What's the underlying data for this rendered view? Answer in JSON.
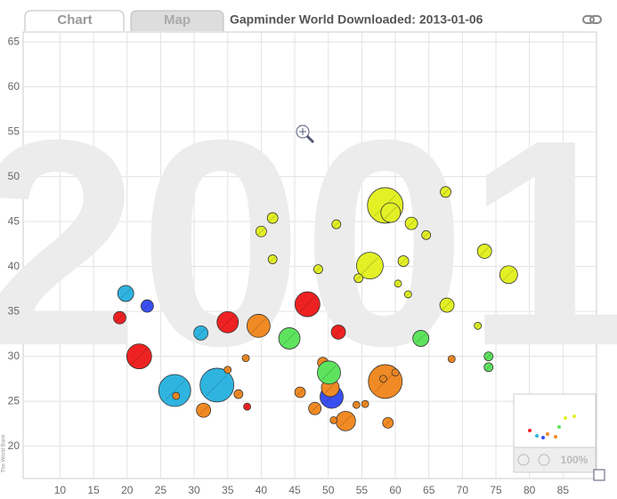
{
  "tabs": [
    "Chart",
    "Map"
  ],
  "chart_data": {
    "type": "bubble",
    "title": "Gapminder World Downloaded: 2013-01-06",
    "watermark": "2001",
    "source": "The World Bank",
    "zoom_label": "100%",
    "xlim": [
      4.5,
      90
    ],
    "ylim": [
      16.4,
      66.1
    ],
    "xticks": [
      10,
      15,
      20,
      25,
      30,
      35,
      40,
      45,
      50,
      55,
      60,
      65,
      70,
      75,
      80,
      85
    ],
    "yticks": [
      20,
      25,
      30,
      35,
      40,
      45,
      50,
      55,
      60,
      65
    ],
    "grid": true,
    "series": [
      {
        "color": "#2fb4e0",
        "x": [
          19.8,
          27.1,
          33.4,
          31.0
        ],
        "values": [
          37.0,
          26.2,
          26.8,
          32.6
        ],
        "sizes": [
          9,
          18,
          19,
          8
        ]
      },
      {
        "color": "#3a4ff0",
        "x": [
          23.0,
          50.5
        ],
        "values": [
          35.6,
          25.5
        ],
        "sizes": [
          7,
          13
        ]
      },
      {
        "color": "#ee2222",
        "x": [
          18.9,
          21.8,
          35.0,
          46.9,
          51.5,
          37.9
        ],
        "values": [
          34.3,
          30.0,
          33.8,
          35.8,
          32.7,
          24.4
        ],
        "sizes": [
          7,
          14,
          12,
          14,
          8,
          4
        ]
      },
      {
        "color": "#f08a24",
        "x": [
          27.3,
          35.0,
          31.4,
          39.6,
          37.7,
          36.6,
          49.2,
          45.8,
          50.3,
          48.0,
          52.6,
          50.8,
          54.2,
          55.5,
          58.5,
          58.2,
          60.0,
          58.9,
          68.4
        ],
        "values": [
          25.6,
          28.5,
          24.0,
          33.4,
          29.8,
          25.8,
          29.3,
          26.0,
          26.5,
          24.2,
          22.8,
          22.9,
          24.6,
          24.7,
          27.2,
          27.5,
          28.2,
          22.6,
          29.7
        ],
        "sizes": [
          4,
          4,
          8,
          13,
          4,
          5,
          6,
          6,
          10,
          7,
          11,
          4,
          4,
          4,
          19,
          4,
          4,
          6,
          4
        ]
      },
      {
        "color": "#5ee35e",
        "x": [
          44.2,
          63.8,
          50.1,
          73.9,
          73.9
        ],
        "values": [
          32.0,
          32.0,
          28.2,
          30.0,
          28.8
        ],
        "sizes": [
          12,
          9,
          13,
          5,
          5
        ]
      },
      {
        "color": "#e2f025",
        "x": [
          41.7,
          40.0,
          41.7,
          51.2,
          48.5,
          56.2,
          54.5,
          58.5,
          59.3,
          62.4,
          64.6,
          67.5,
          61.2,
          60.4,
          61.9,
          67.7,
          73.3,
          76.9,
          72.3
        ],
        "values": [
          45.4,
          43.9,
          40.8,
          44.7,
          39.7,
          40.1,
          38.7,
          46.8,
          46.0,
          44.8,
          43.5,
          48.3,
          40.6,
          38.1,
          36.9,
          35.7,
          41.7,
          39.1,
          33.4
        ],
        "sizes": [
          6,
          6,
          5,
          5,
          5,
          15,
          5,
          20,
          11,
          7,
          5,
          6,
          6,
          4,
          4,
          8,
          8,
          10,
          4
        ]
      }
    ]
  }
}
